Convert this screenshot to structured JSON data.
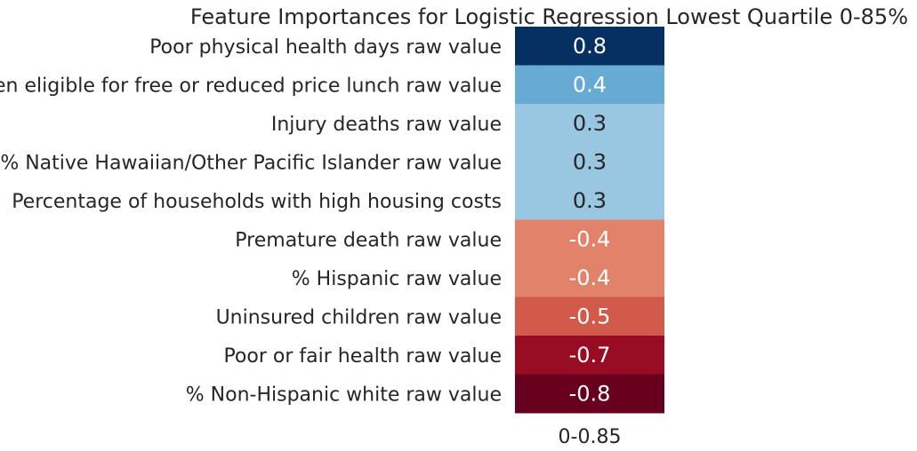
{
  "chart_data": {
    "type": "heatmap",
    "title": "Feature Importances for Logistic Regression Lowest Quartile 0-85%",
    "columns": [
      "0-0.85"
    ],
    "rows": [
      "Poor physical health days raw value",
      "Children eligible for free or reduced price lunch raw value",
      "Injury deaths raw value",
      "% Native Hawaiian/Other Pacific Islander raw value",
      "Percentage of households with high housing costs",
      "Premature death raw value",
      "% Hispanic raw value",
      "Uninsured children raw value",
      "Poor or fair health raw value",
      "% Non-Hispanic white raw value"
    ],
    "values": [
      0.8,
      0.4,
      0.3,
      0.3,
      0.3,
      -0.4,
      -0.4,
      -0.5,
      -0.7,
      -0.8
    ],
    "value_labels": [
      "0.8",
      "0.4",
      "0.3",
      "0.3",
      "0.3",
      "-0.4",
      "-0.4",
      "-0.5",
      "-0.7",
      "-0.8"
    ],
    "colormap": "RdBu",
    "vmin": -0.8,
    "vmax": 0.8,
    "colorbar": false,
    "grid": false,
    "cell_colors": [
      "#053061",
      "#67abd4",
      "#99c7e1",
      "#99c7e1",
      "#99c7e1",
      "#e2826a",
      "#e2826a",
      "#d25a4a",
      "#980d24",
      "#67001f"
    ],
    "text_colors": [
      "#ffffff",
      "#ffffff",
      "#262626",
      "#262626",
      "#262626",
      "#ffffff",
      "#ffffff",
      "#ffffff",
      "#ffffff",
      "#ffffff"
    ]
  }
}
